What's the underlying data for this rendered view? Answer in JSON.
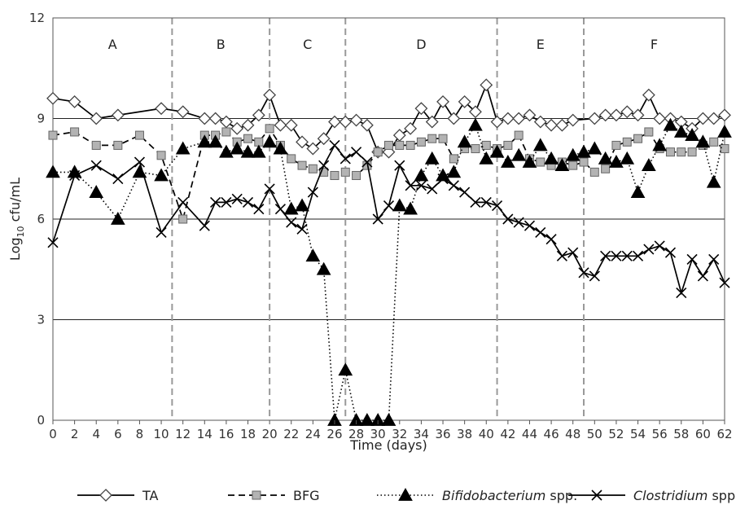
{
  "chart_data": {
    "type": "line",
    "title": "",
    "xlabel": "Time (days)",
    "ylabel": "Log10 cfu/mL",
    "ylabel_parts": {
      "base": "Log",
      "sub": "10",
      "rest": " cfu/mL"
    },
    "ylim": [
      0,
      12
    ],
    "yticks": [
      0,
      3,
      6,
      9,
      12
    ],
    "xlim": [
      0,
      62
    ],
    "xticks": [
      0,
      2,
      4,
      6,
      8,
      10,
      12,
      14,
      16,
      18,
      20,
      22,
      24,
      26,
      28,
      30,
      32,
      34,
      36,
      38,
      40,
      42,
      44,
      46,
      48,
      50,
      52,
      54,
      56,
      58,
      60,
      62
    ],
    "grid": "horizontal",
    "legend_position": "bottom",
    "phases": [
      {
        "label": "A",
        "start": 0,
        "end": 11
      },
      {
        "label": "B",
        "start": 11,
        "end": 20
      },
      {
        "label": "C",
        "start": 20,
        "end": 27
      },
      {
        "label": "D",
        "start": 27,
        "end": 41
      },
      {
        "label": "E",
        "start": 41,
        "end": 49
      },
      {
        "label": "F",
        "start": 49,
        "end": 62
      }
    ],
    "phase_boundaries": [
      11,
      20,
      27,
      41,
      49
    ],
    "series": [
      {
        "name": "TA",
        "legend_label": "TA",
        "marker": "diamond-open",
        "line": "solid",
        "x": [
          0,
          2,
          4,
          6,
          10,
          12,
          14,
          15,
          16,
          17,
          18,
          19,
          20,
          21,
          22,
          23,
          24,
          25,
          26,
          27,
          28,
          29,
          30,
          31,
          32,
          33,
          34,
          35,
          36,
          37,
          38,
          39,
          40,
          41,
          42,
          43,
          44,
          45,
          46,
          47,
          48,
          50,
          51,
          52,
          53,
          54,
          55,
          56,
          57,
          58,
          59,
          60,
          61,
          62
        ],
        "values": [
          9.6,
          9.5,
          9.0,
          9.1,
          9.3,
          9.2,
          9.0,
          9.0,
          8.9,
          8.7,
          8.8,
          9.1,
          9.7,
          8.8,
          8.8,
          8.3,
          8.1,
          8.4,
          8.9,
          8.9,
          8.95,
          8.8,
          8.0,
          8.0,
          8.5,
          8.7,
          9.3,
          8.9,
          9.5,
          9.0,
          9.5,
          9.2,
          10.0,
          8.9,
          9.0,
          9.0,
          9.1,
          8.9,
          8.8,
          8.8,
          8.95,
          9.0,
          9.1,
          9.1,
          9.2,
          9.1,
          9.7,
          9.0,
          9.0,
          8.9,
          8.7,
          9.0,
          9.0,
          9.1
        ]
      },
      {
        "name": "BFG",
        "legend_label": "BFG",
        "marker": "square-gray",
        "line": "dashed",
        "x": [
          0,
          2,
          4,
          6,
          8,
          10,
          12,
          14,
          15,
          16,
          17,
          18,
          19,
          20,
          21,
          22,
          23,
          24,
          25,
          26,
          27,
          28,
          29,
          30,
          31,
          32,
          33,
          34,
          35,
          36,
          37,
          38,
          39,
          40,
          41,
          42,
          43,
          44,
          45,
          46,
          47,
          48,
          49,
          50,
          51,
          52,
          53,
          54,
          55,
          56,
          57,
          58,
          59,
          60,
          61,
          62
        ],
        "values": [
          8.5,
          8.6,
          8.2,
          8.2,
          8.5,
          7.9,
          6.0,
          8.5,
          8.5,
          8.6,
          8.3,
          8.4,
          8.3,
          8.7,
          8.2,
          7.8,
          7.6,
          7.5,
          7.4,
          7.3,
          7.4,
          7.3,
          7.6,
          8.0,
          8.2,
          8.2,
          8.2,
          8.3,
          8.4,
          8.4,
          7.8,
          8.1,
          8.1,
          8.2,
          8.1,
          8.2,
          8.5,
          7.8,
          7.7,
          7.6,
          7.7,
          7.6,
          7.7,
          7.4,
          7.5,
          8.2,
          8.3,
          8.4,
          8.6,
          8.1,
          8.0,
          8.0,
          8.0,
          8.2,
          8.3,
          8.1
        ]
      },
      {
        "name": "Bifidobacterium spp.",
        "legend_label": "Bifidobacterium",
        "legend_suffix": " spp.",
        "marker": "triangle-filled",
        "line": "dotted",
        "x": [
          0,
          2,
          4,
          6,
          8,
          10,
          12,
          14,
          15,
          16,
          17,
          18,
          19,
          20,
          21,
          22,
          23,
          24,
          25,
          26,
          27,
          28,
          29,
          30,
          31,
          32,
          33,
          34,
          35,
          36,
          37,
          38,
          39,
          40,
          41,
          42,
          43,
          44,
          45,
          46,
          47,
          48,
          49,
          50,
          51,
          52,
          53,
          54,
          55,
          56,
          57,
          58,
          59,
          60,
          61,
          62
        ],
        "values": [
          7.4,
          7.4,
          6.8,
          6.0,
          7.4,
          7.3,
          8.1,
          8.3,
          8.3,
          8.0,
          8.1,
          8.0,
          8.0,
          8.3,
          8.1,
          6.3,
          6.4,
          4.9,
          4.5,
          0.0,
          1.5,
          0.0,
          0.0,
          0.0,
          0.0,
          6.4,
          6.3,
          7.3,
          7.8,
          7.3,
          7.4,
          8.3,
          8.8,
          7.8,
          8.0,
          7.7,
          7.9,
          7.7,
          8.2,
          7.8,
          7.6,
          7.9,
          8.0,
          8.1,
          7.8,
          7.7,
          7.8,
          6.8,
          7.6,
          8.2,
          8.8,
          8.6,
          8.5,
          8.3,
          7.1,
          8.6
        ]
      },
      {
        "name": "Clostridium spp.",
        "legend_label": "Clostridium",
        "legend_suffix": " spp.",
        "marker": "x-cross",
        "line": "solid",
        "x": [
          0,
          2,
          4,
          6,
          8,
          10,
          12,
          14,
          15,
          16,
          17,
          18,
          19,
          20,
          21,
          22,
          23,
          24,
          25,
          26,
          27,
          28,
          29,
          30,
          31,
          32,
          33,
          34,
          35,
          36,
          37,
          38,
          39,
          40,
          41,
          42,
          43,
          44,
          45,
          46,
          47,
          48,
          49,
          50,
          51,
          52,
          53,
          54,
          55,
          56,
          57,
          58,
          59,
          60,
          61,
          62
        ],
        "values": [
          5.3,
          7.3,
          7.6,
          7.2,
          7.7,
          5.6,
          6.5,
          5.8,
          6.5,
          6.5,
          6.6,
          6.5,
          6.3,
          6.9,
          6.3,
          5.9,
          5.7,
          6.8,
          7.6,
          8.2,
          7.8,
          8.0,
          7.7,
          6.0,
          6.4,
          7.6,
          7.0,
          7.0,
          6.9,
          7.2,
          7.0,
          6.8,
          6.5,
          6.5,
          6.4,
          6.0,
          5.9,
          5.8,
          5.6,
          5.4,
          4.9,
          5.0,
          4.4,
          4.3,
          4.9,
          4.9,
          4.9,
          4.9,
          5.1,
          5.2,
          5.0,
          3.8,
          4.8,
          4.3,
          4.8,
          4.1
        ]
      }
    ]
  }
}
